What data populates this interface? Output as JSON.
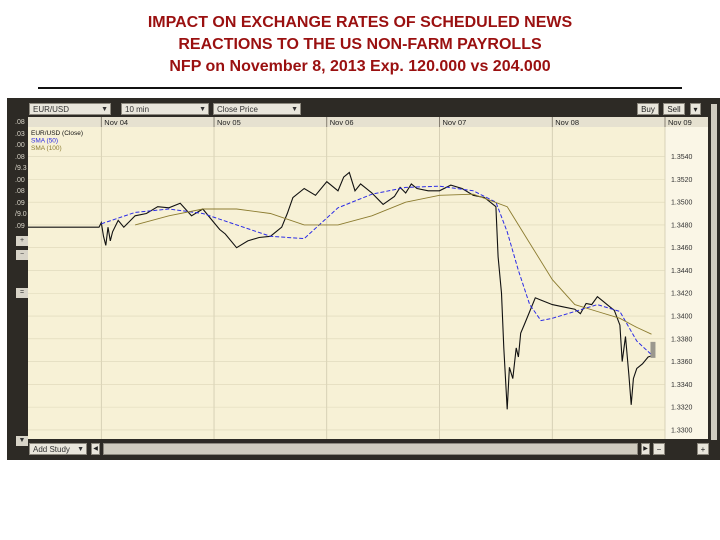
{
  "title_lines": [
    "IMPACT ON EXCHANGE RATES OF SCHEDULED NEWS",
    "REACTIONS TO THE US NON-FARM PAYROLLS",
    "NFP on November 8, 2013 Exp. 120.000 vs 204.000"
  ],
  "toolbar": {
    "symbol": "EUR/USD",
    "interval": "10 min",
    "field": "Close Price",
    "buy_label": "Buy",
    "sell_label": "Sell",
    "add_study_label": "Add Study"
  },
  "colors": {
    "title": "#9a1010",
    "price": "#111111",
    "sma50": "#2c2ce6",
    "sma100": "#8c7c30",
    "plot_bg": "#f7f1d6",
    "frame": "#2d2a25"
  },
  "left_axis_fragments": [
    ".08",
    ".03",
    ".00",
    ".08",
    "/9.3",
    ".00",
    ".08",
    ".09",
    "/9.0",
    ".09"
  ],
  "chart_data": {
    "type": "line",
    "title": "NFP on November 8, 2013 Exp. 120.000 vs 204.000",
    "x_ticks": [
      "Nov 04",
      "Nov 05",
      "Nov 06",
      "Nov 07",
      "Nov 08",
      "Nov 09"
    ],
    "x_tick_index": [
      0,
      1,
      2,
      3,
      4,
      5
    ],
    "xlim": [
      -0.65,
      5.0
    ],
    "y_ticks": [
      "1.3540",
      "1.3520",
      "1.3500",
      "1.3480",
      "1.3460",
      "1.3440",
      "1.3420",
      "1.3400",
      "1.3380",
      "1.3360",
      "1.3340",
      "1.3320",
      "1.3300"
    ],
    "ylim": [
      1.3292,
      1.3566
    ],
    "legend": [
      "EUR/USD (Close)",
      "SMA (50)",
      "SMA (100)"
    ],
    "legend_position": "top-left",
    "grid": true,
    "series": [
      {
        "name": "EUR/USD (Close)",
        "style": "price",
        "x": [
          -0.65,
          -0.3,
          -0.02,
          0.0,
          0.02,
          0.04,
          0.06,
          0.08,
          0.1,
          0.15,
          0.2,
          0.3,
          0.4,
          0.5,
          0.6,
          0.7,
          0.8,
          0.9,
          1.0,
          1.05,
          1.1,
          1.2,
          1.3,
          1.4,
          1.5,
          1.6,
          1.65,
          1.7,
          1.8,
          1.9,
          2.0,
          2.1,
          2.15,
          2.2,
          2.25,
          2.3,
          2.4,
          2.5,
          2.6,
          2.65,
          2.7,
          2.75,
          2.8,
          2.9,
          3.0,
          3.1,
          3.2,
          3.3,
          3.4,
          3.5,
          3.52,
          3.55,
          3.57,
          3.6,
          3.62,
          3.65,
          3.68,
          3.7,
          3.72,
          3.75,
          3.8,
          3.85,
          3.9,
          4.0,
          4.1,
          4.2,
          4.25,
          4.3,
          4.35,
          4.4,
          4.45,
          4.5,
          4.55,
          4.6,
          4.62,
          4.65,
          4.68,
          4.7,
          4.72,
          4.75,
          4.8,
          4.85,
          4.88
        ],
        "y": [
          1.3478,
          1.3478,
          1.3478,
          1.3482,
          1.347,
          1.3462,
          1.3478,
          1.3466,
          1.3474,
          1.3484,
          1.3478,
          1.3488,
          1.349,
          1.3496,
          1.3495,
          1.3499,
          1.3488,
          1.3494,
          1.3482,
          1.3476,
          1.3472,
          1.346,
          1.3466,
          1.3469,
          1.347,
          1.3478,
          1.349,
          1.3504,
          1.3512,
          1.3506,
          1.3518,
          1.351,
          1.3522,
          1.3526,
          1.351,
          1.3516,
          1.3508,
          1.3498,
          1.3505,
          1.3513,
          1.3508,
          1.3516,
          1.3512,
          1.351,
          1.351,
          1.3515,
          1.3512,
          1.3506,
          1.3504,
          1.3496,
          1.3452,
          1.342,
          1.3372,
          1.3318,
          1.3355,
          1.3345,
          1.3372,
          1.3364,
          1.3385,
          1.3392,
          1.3404,
          1.3416,
          1.3414,
          1.341,
          1.3408,
          1.3406,
          1.3402,
          1.3411,
          1.341,
          1.3417,
          1.3413,
          1.3409,
          1.3405,
          1.3392,
          1.336,
          1.3382,
          1.3348,
          1.3322,
          1.3345,
          1.3354,
          1.3358,
          1.3364,
          1.3365
        ]
      },
      {
        "name": "SMA (50)",
        "style": "dashed",
        "x": [
          0.0,
          0.3,
          0.6,
          0.9,
          1.2,
          1.5,
          1.8,
          2.1,
          2.4,
          2.7,
          3.0,
          3.3,
          3.5,
          3.6,
          3.7,
          3.8,
          3.9,
          4.0,
          4.2,
          4.4,
          4.6,
          4.75,
          4.88
        ],
        "y": [
          1.3481,
          1.3491,
          1.3494,
          1.349,
          1.348,
          1.347,
          1.3468,
          1.3495,
          1.3507,
          1.3513,
          1.3514,
          1.351,
          1.35,
          1.3474,
          1.344,
          1.341,
          1.3396,
          1.3398,
          1.3404,
          1.341,
          1.3404,
          1.3378,
          1.3366
        ]
      },
      {
        "name": "SMA (100)",
        "style": "solid-thin",
        "x": [
          0.3,
          0.6,
          0.9,
          1.2,
          1.5,
          1.8,
          2.1,
          2.4,
          2.7,
          3.0,
          3.3,
          3.6,
          3.8,
          4.0,
          4.2,
          4.4,
          4.6,
          4.75,
          4.88
        ],
        "y": [
          1.348,
          1.3488,
          1.3494,
          1.3494,
          1.349,
          1.348,
          1.348,
          1.3488,
          1.35,
          1.3506,
          1.3507,
          1.3496,
          1.3464,
          1.3432,
          1.341,
          1.3404,
          1.3398,
          1.339,
          1.3384
        ]
      }
    ]
  }
}
